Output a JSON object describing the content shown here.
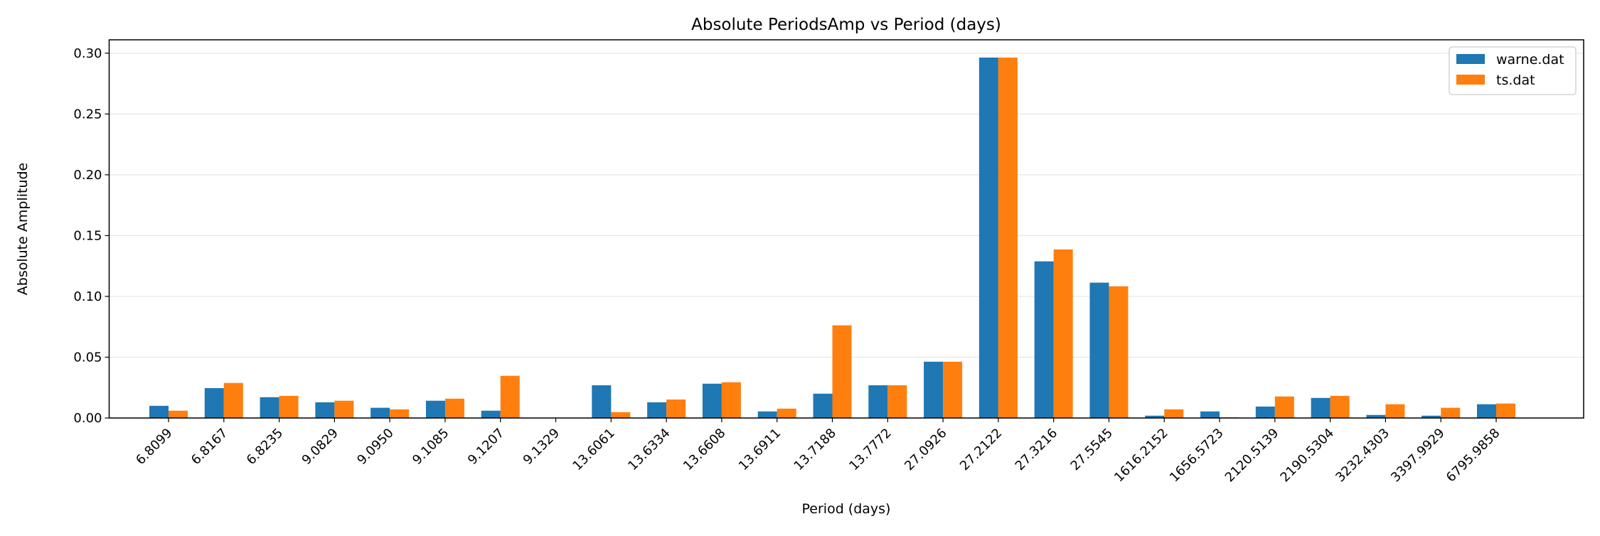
{
  "chart_data": {
    "type": "bar",
    "title": "Absolute PeriodsAmp vs Period (days)",
    "xlabel": "Period (days)",
    "ylabel": "Absolute Amplitude",
    "ylim": [
      0,
      0.311
    ],
    "yticks": [
      "0.00",
      "0.05",
      "0.10",
      "0.15",
      "0.20",
      "0.25",
      "0.30"
    ],
    "grid": "y",
    "legend_position": "top-right",
    "categories": [
      "6.8099",
      "6.8167",
      "6.8235",
      "9.0829",
      "9.0950",
      "9.1085",
      "9.1207",
      "9.1329",
      "13.6061",
      "13.6334",
      "13.6608",
      "13.6911",
      "13.7188",
      "13.7772",
      "27.0926",
      "27.2122",
      "27.3216",
      "27.5545",
      "1616.2152",
      "1656.5723",
      "2120.5139",
      "2190.5304",
      "3232.4303",
      "3397.9929",
      "6795.9858"
    ],
    "series": [
      {
        "name": "warne.dat",
        "color": "#1f77b4",
        "values": [
          0.01,
          0.0246,
          0.0171,
          0.0129,
          0.0084,
          0.0142,
          0.006,
          0.0,
          0.0269,
          0.0129,
          0.0282,
          0.0054,
          0.02,
          0.0269,
          0.0463,
          0.2964,
          0.1288,
          0.1113,
          0.0019,
          0.0054,
          0.0094,
          0.0165,
          0.0025,
          0.0019,
          0.0113
        ]
      },
      {
        "name": "ts.dat",
        "color": "#ff7f0e",
        "values": [
          0.006,
          0.0288,
          0.0182,
          0.0142,
          0.0071,
          0.0159,
          0.0347,
          0.0,
          0.0048,
          0.0152,
          0.0294,
          0.0077,
          0.0762,
          0.0269,
          0.0463,
          0.2964,
          0.1386,
          0.1083,
          0.0071,
          0.0006,
          0.0177,
          0.0182,
          0.0113,
          0.0084,
          0.0119
        ]
      }
    ]
  }
}
